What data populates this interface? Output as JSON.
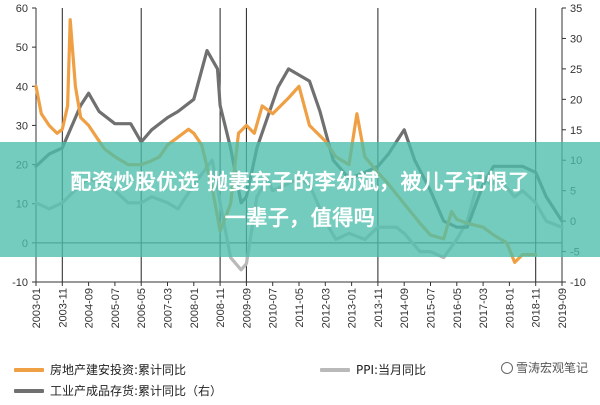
{
  "chart_data": {
    "type": "line",
    "x": [
      "2003-01",
      "2003-11",
      "2004-09",
      "2005-07",
      "2006-05",
      "2007-03",
      "2008-01",
      "2008-11",
      "2009-09",
      "2010-07",
      "2011-05",
      "2012-03",
      "2013-01",
      "2013-11",
      "2014-09",
      "2015-07",
      "2016-05",
      "2017-03",
      "2018-01",
      "2018-11",
      "2019-09"
    ],
    "xlim": [
      "2003-01",
      "2019-09"
    ],
    "y_left_ticks": [
      -10,
      0,
      10,
      20,
      30,
      40,
      50,
      60
    ],
    "y_left_range": [
      -10,
      60
    ],
    "y_right_ticks": [
      -10,
      -5,
      0,
      5,
      10,
      15,
      20,
      25,
      30,
      35
    ],
    "y_right_range": [
      -10,
      35
    ],
    "vlines": [
      "2003-11",
      "2006-05",
      "2008-11",
      "2009-09",
      "2013-11",
      "2018-11"
    ],
    "series": [
      {
        "name": "房地产建安投资:累计同比",
        "color": "#f0a044",
        "axis": "left",
        "points": [
          [
            "2003-01",
            40
          ],
          [
            "2003-03",
            33
          ],
          [
            "2003-06",
            30
          ],
          [
            "2003-09",
            28
          ],
          [
            "2003-11",
            29
          ],
          [
            "2004-01",
            35
          ],
          [
            "2004-02",
            57
          ],
          [
            "2004-04",
            40
          ],
          [
            "2004-06",
            32
          ],
          [
            "2004-09",
            30
          ],
          [
            "2004-12",
            27
          ],
          [
            "2005-03",
            24
          ],
          [
            "2005-07",
            22
          ],
          [
            "2005-12",
            20
          ],
          [
            "2006-03",
            20
          ],
          [
            "2006-05",
            20
          ],
          [
            "2006-09",
            21
          ],
          [
            "2006-12",
            22
          ],
          [
            "2007-03",
            25
          ],
          [
            "2007-07",
            27
          ],
          [
            "2007-11",
            29
          ],
          [
            "2008-01",
            28
          ],
          [
            "2008-04",
            25
          ],
          [
            "2008-08",
            14
          ],
          [
            "2008-11",
            3
          ],
          [
            "2009-03",
            10
          ],
          [
            "2009-06",
            28
          ],
          [
            "2009-09",
            30
          ],
          [
            "2009-12",
            28
          ],
          [
            "2010-03",
            35
          ],
          [
            "2010-07",
            33
          ],
          [
            "2010-10",
            35
          ],
          [
            "2011-01",
            37
          ],
          [
            "2011-05",
            40
          ],
          [
            "2011-09",
            30
          ],
          [
            "2011-12",
            28
          ],
          [
            "2012-03",
            26
          ],
          [
            "2012-07",
            22
          ],
          [
            "2012-12",
            20
          ],
          [
            "2013-03",
            33
          ],
          [
            "2013-06",
            22
          ],
          [
            "2013-11",
            18
          ],
          [
            "2014-03",
            15
          ],
          [
            "2014-09",
            10
          ],
          [
            "2015-03",
            5
          ],
          [
            "2015-07",
            2
          ],
          [
            "2015-12",
            1
          ],
          [
            "2016-03",
            8
          ],
          [
            "2016-05",
            6
          ],
          [
            "2016-09",
            5
          ],
          [
            "2017-03",
            4
          ],
          [
            "2017-07",
            2
          ],
          [
            "2017-12",
            0
          ],
          [
            "2018-03",
            -5
          ],
          [
            "2018-06",
            -3
          ],
          [
            "2018-11",
            -3
          ]
        ]
      },
      {
        "name": "PPI:当月同比",
        "color": "#b9b9b9",
        "axis": "right",
        "points": [
          [
            "2003-01",
            3
          ],
          [
            "2003-06",
            2
          ],
          [
            "2003-11",
            3
          ],
          [
            "2004-06",
            6
          ],
          [
            "2004-09",
            7
          ],
          [
            "2005-03",
            6
          ],
          [
            "2005-07",
            5
          ],
          [
            "2005-12",
            3
          ],
          [
            "2006-05",
            3
          ],
          [
            "2006-09",
            4
          ],
          [
            "2007-03",
            3
          ],
          [
            "2007-07",
            2
          ],
          [
            "2008-01",
            6
          ],
          [
            "2008-08",
            10
          ],
          [
            "2008-11",
            3
          ],
          [
            "2009-03",
            -6
          ],
          [
            "2009-07",
            -8
          ],
          [
            "2009-09",
            -7
          ],
          [
            "2010-01",
            4
          ],
          [
            "2010-05",
            7
          ],
          [
            "2010-07",
            5
          ],
          [
            "2011-05",
            7
          ],
          [
            "2011-09",
            6
          ],
          [
            "2012-03",
            0
          ],
          [
            "2012-07",
            -3
          ],
          [
            "2012-12",
            -2
          ],
          [
            "2013-06",
            -3
          ],
          [
            "2013-11",
            -1
          ],
          [
            "2014-06",
            -1
          ],
          [
            "2014-09",
            -2
          ],
          [
            "2015-03",
            -5
          ],
          [
            "2015-07",
            -5
          ],
          [
            "2015-12",
            -6
          ],
          [
            "2016-05",
            -3
          ],
          [
            "2016-09",
            0
          ],
          [
            "2017-02",
            8
          ],
          [
            "2017-06",
            6
          ],
          [
            "2017-09",
            7
          ],
          [
            "2018-03",
            4
          ],
          [
            "2018-06",
            5
          ],
          [
            "2018-11",
            3
          ],
          [
            "2019-03",
            0
          ],
          [
            "2019-09",
            -1
          ]
        ]
      },
      {
        "name": "工业产成品存货:累计同比（右）",
        "color": "#707070",
        "axis": "right",
        "points": [
          [
            "2003-01",
            9
          ],
          [
            "2003-06",
            11
          ],
          [
            "2003-11",
            12
          ],
          [
            "2004-03",
            16
          ],
          [
            "2004-06",
            19
          ],
          [
            "2004-09",
            21
          ],
          [
            "2005-01",
            18
          ],
          [
            "2005-07",
            16
          ],
          [
            "2006-01",
            16
          ],
          [
            "2006-05",
            13
          ],
          [
            "2006-09",
            15
          ],
          [
            "2007-03",
            17
          ],
          [
            "2007-07",
            18
          ],
          [
            "2008-01",
            20
          ],
          [
            "2008-06",
            28
          ],
          [
            "2008-10",
            25
          ],
          [
            "2008-11",
            19
          ],
          [
            "2009-03",
            12
          ],
          [
            "2009-07",
            3
          ],
          [
            "2009-09",
            4
          ],
          [
            "2010-01",
            12
          ],
          [
            "2010-05",
            17
          ],
          [
            "2010-09",
            22
          ],
          [
            "2011-01",
            25
          ],
          [
            "2011-05",
            24
          ],
          [
            "2011-09",
            23
          ],
          [
            "2012-01",
            18
          ],
          [
            "2012-06",
            10
          ],
          [
            "2012-12",
            7
          ],
          [
            "2013-06",
            8
          ],
          [
            "2013-11",
            9
          ],
          [
            "2014-03",
            11
          ],
          [
            "2014-09",
            15
          ],
          [
            "2015-01",
            10
          ],
          [
            "2015-07",
            5
          ],
          [
            "2015-12",
            0
          ],
          [
            "2016-05",
            -1
          ],
          [
            "2016-09",
            -1
          ],
          [
            "2017-03",
            6
          ],
          [
            "2017-07",
            9
          ],
          [
            "2017-12",
            9
          ],
          [
            "2018-06",
            9
          ],
          [
            "2018-11",
            8
          ],
          [
            "2019-03",
            4
          ],
          [
            "2019-09",
            0
          ]
        ]
      }
    ],
    "legend": {
      "placement": "bottom"
    }
  },
  "overlay": {
    "line1": "配资炒股优选 抛妻弃子的李幼斌，被儿子记恨了",
    "line2": "一辈子，值得吗"
  },
  "watermark": {
    "text": "雪涛宏观笔记"
  }
}
